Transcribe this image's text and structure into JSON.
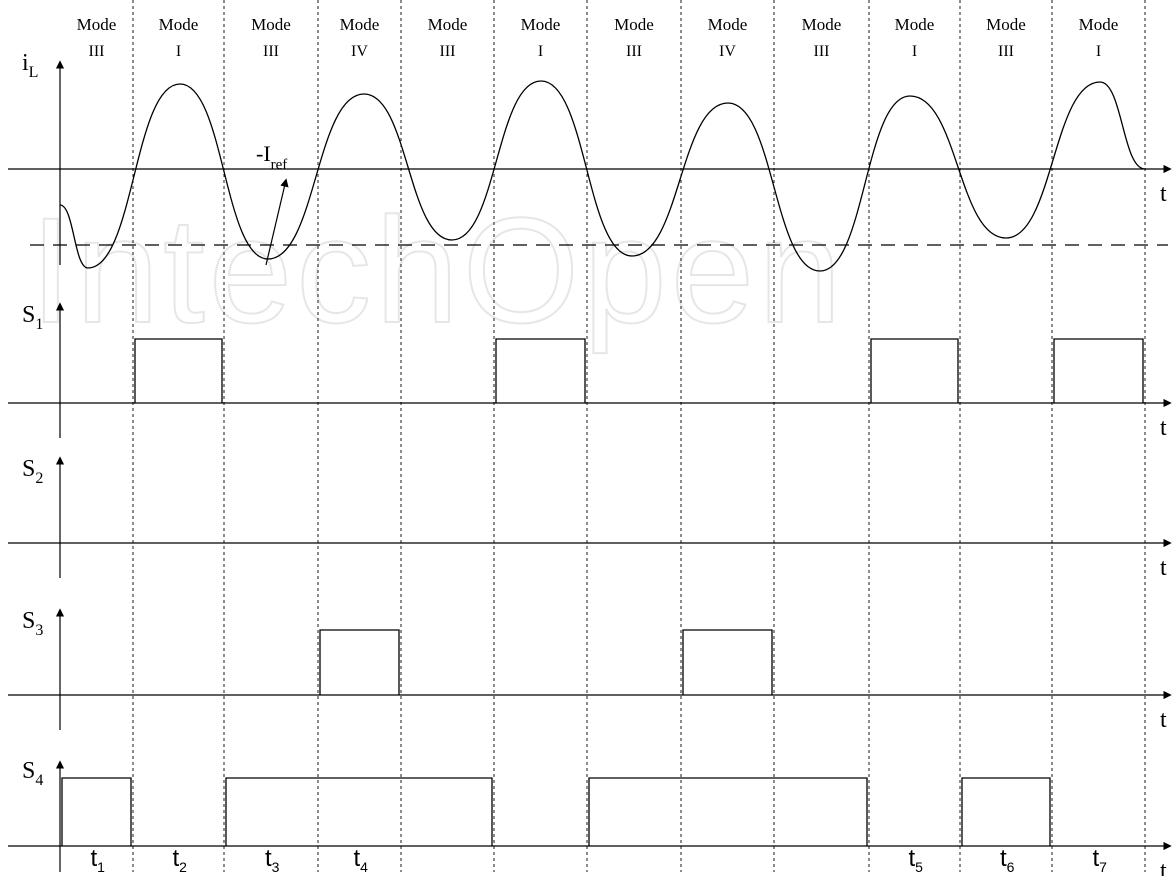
{
  "modes": [
    {
      "word": "Mode",
      "num": "III"
    },
    {
      "word": "Mode",
      "num": "I"
    },
    {
      "word": "Mode",
      "num": "III"
    },
    {
      "word": "Mode",
      "num": "IV"
    },
    {
      "word": "Mode",
      "num": "III"
    },
    {
      "word": "Mode",
      "num": "I"
    },
    {
      "word": "Mode",
      "num": "III"
    },
    {
      "word": "Mode",
      "num": "IV"
    },
    {
      "word": "Mode",
      "num": "III"
    },
    {
      "word": "Mode",
      "num": "I"
    },
    {
      "word": "Mode",
      "num": "III"
    },
    {
      "word": "Mode",
      "num": "I"
    }
  ],
  "traces": [
    {
      "main": "i",
      "sub": "L",
      "axis_label": "t"
    },
    {
      "main": "S",
      "sub": "1",
      "axis_label": "t"
    },
    {
      "main": "S",
      "sub": "2",
      "axis_label": "t"
    },
    {
      "main": "S",
      "sub": "3",
      "axis_label": "t"
    },
    {
      "main": "S",
      "sub": "4",
      "axis_label": "t"
    }
  ],
  "iref": {
    "main": "-I",
    "sub": "ref"
  },
  "time_labels": [
    {
      "main": "t",
      "sub": "1"
    },
    {
      "main": "t",
      "sub": "2"
    },
    {
      "main": "t",
      "sub": "3"
    },
    {
      "main": "t",
      "sub": "4"
    },
    {
      "main": "t",
      "sub": "5"
    },
    {
      "main": "t",
      "sub": "6"
    },
    {
      "main": "t",
      "sub": "7"
    }
  ],
  "switch_states": {
    "S1": [
      0,
      1,
      0,
      0,
      0,
      1,
      0,
      0,
      0,
      1,
      0,
      1
    ],
    "S2": [
      0,
      0,
      0,
      0,
      0,
      0,
      0,
      0,
      0,
      0,
      0,
      0
    ],
    "S3": [
      0,
      0,
      0,
      1,
      0,
      0,
      0,
      1,
      0,
      0,
      0,
      0
    ],
    "S4": [
      1,
      0,
      1,
      1,
      1,
      0,
      1,
      1,
      1,
      0,
      1,
      0
    ]
  },
  "watermark": "IntechOpen"
}
